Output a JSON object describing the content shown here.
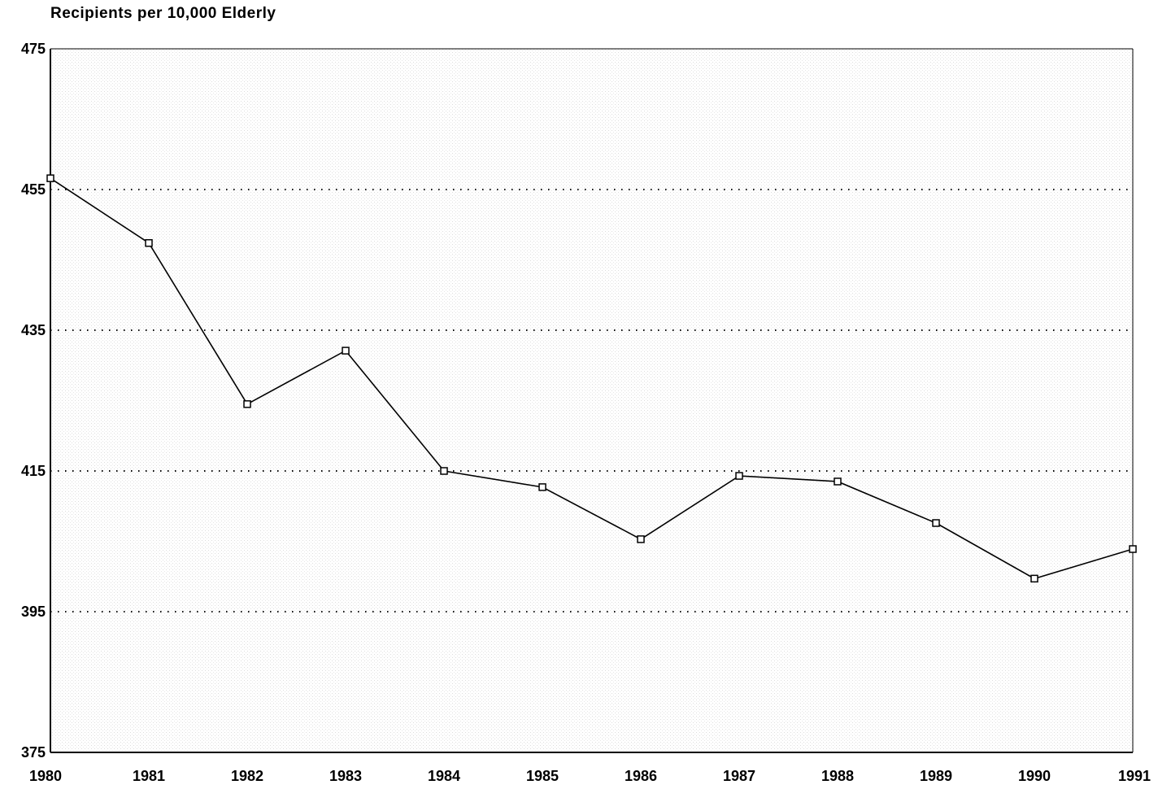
{
  "chart_data": {
    "type": "line",
    "title": "",
    "xlabel": "",
    "ylabel": "Recipients per 10,000 Elderly",
    "x": [
      1980,
      1981,
      1982,
      1983,
      1984,
      1985,
      1986,
      1987,
      1988,
      1989,
      1990,
      1991
    ],
    "x_tick_labels": [
      "1980",
      "1981",
      "1982",
      "1983",
      "1984",
      "1985",
      "1986",
      "1987",
      "1988",
      "1989",
      "1990",
      "1991"
    ],
    "series": [
      {
        "values": [
          456.6,
          447.4,
          424.5,
          432.1,
          415.0,
          412.7,
          405.3,
          414.3,
          413.5,
          407.6,
          399.7,
          403.9
        ]
      }
    ],
    "ylim": [
      375,
      475
    ],
    "y_ticks": [
      375,
      395,
      415,
      435,
      455,
      475
    ],
    "y_tick_labels": [
      "375",
      "395",
      "415",
      "435",
      "455",
      "475"
    ],
    "gridlines": [
      395,
      415,
      435,
      455
    ],
    "grid": true,
    "marker": "square",
    "line_color": "#000000",
    "background_texture": "stippled gray"
  }
}
